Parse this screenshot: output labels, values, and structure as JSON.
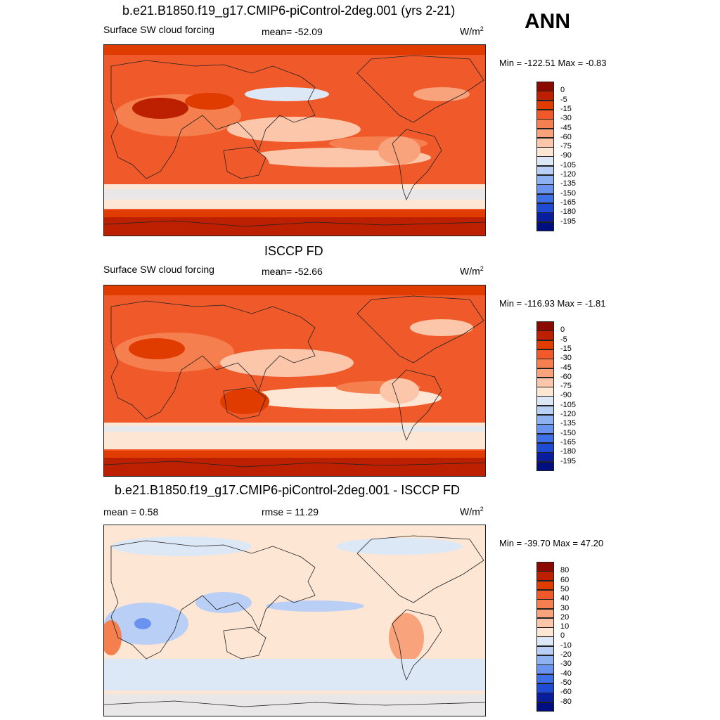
{
  "season": "ANN",
  "panels": [
    {
      "title": "b.e21.B1850.f19_g17.CMIP6-piControl-2deg.001 (yrs 2-21)",
      "left_label": "Surface SW cloud forcing",
      "center_label": "mean= -52.09",
      "units": "W/m",
      "units_exp": "2",
      "minmax": "Min = -122.51 Max =  -0.83",
      "colorbar_labels": [
        "0",
        "-5",
        "-15",
        "-30",
        "-45",
        "-60",
        "-75",
        "-90",
        "-105",
        "-120",
        "-135",
        "-150",
        "-165",
        "-180",
        "-195"
      ],
      "colorbar_colors": [
        "#8b0a00",
        "#bd2000",
        "#e03c00",
        "#f05a2a",
        "#f57f4f",
        "#f9a37c",
        "#fcc6aa",
        "#fde6d4",
        "#dde8f7",
        "#b9cff5",
        "#8eb1f2",
        "#6a93ef",
        "#3f6fe6",
        "#1f4ad4",
        "#0a1d9c",
        "#000f80"
      ]
    },
    {
      "title": "ISCCP FD",
      "left_label": "Surface SW cloud forcing",
      "center_label": "mean= -52.66",
      "units": "W/m",
      "units_exp": "2",
      "minmax": "Min = -116.93 Max =  -1.81",
      "colorbar_labels": [
        "0",
        "-5",
        "-15",
        "-30",
        "-45",
        "-60",
        "-75",
        "-90",
        "-105",
        "-120",
        "-135",
        "-150",
        "-165",
        "-180",
        "-195"
      ],
      "colorbar_colors": [
        "#8b0a00",
        "#bd2000",
        "#e03c00",
        "#f05a2a",
        "#f57f4f",
        "#f9a37c",
        "#fcc6aa",
        "#fde6d4",
        "#dde8f7",
        "#b9cff5",
        "#8eb1f2",
        "#6a93ef",
        "#3f6fe6",
        "#1f4ad4",
        "#0a1d9c",
        "#000f80"
      ]
    },
    {
      "title": "b.e21.B1850.f19_g17.CMIP6-piControl-2deg.001 - ISCCP FD",
      "left_label": "mean =   0.58",
      "center_label": "rmse =  11.29",
      "units": "W/m",
      "units_exp": "2",
      "minmax": "Min = -39.70 Max =  47.20",
      "colorbar_labels": [
        "80",
        "60",
        "50",
        "40",
        "30",
        "20",
        "10",
        "0",
        "-10",
        "-20",
        "-30",
        "-40",
        "-50",
        "-60",
        "-80"
      ],
      "colorbar_colors": [
        "#8b0a00",
        "#bd2000",
        "#e03c00",
        "#f05a2a",
        "#f57f4f",
        "#f9a37c",
        "#fcc6aa",
        "#fde6d4",
        "#dde8f7",
        "#b9cff5",
        "#8eb1f2",
        "#6a93ef",
        "#3f6fe6",
        "#1f4ad4",
        "#0a1d9c",
        "#000f80"
      ]
    }
  ],
  "chart_data": [
    {
      "type": "heatmap",
      "title": "b.e21.B1850.f19_g17.CMIP6-piControl-2deg.001 (yrs 2-21)",
      "variable": "Surface SW cloud forcing",
      "units": "W/m2",
      "mean": -52.09,
      "min": -122.51,
      "max": -0.83,
      "levels": [
        0,
        -5,
        -15,
        -30,
        -45,
        -60,
        -75,
        -90,
        -105,
        -120,
        -135,
        -150,
        -165,
        -180,
        -195
      ]
    },
    {
      "type": "heatmap",
      "title": "ISCCP FD",
      "variable": "Surface SW cloud forcing",
      "units": "W/m2",
      "mean": -52.66,
      "min": -116.93,
      "max": -1.81,
      "levels": [
        0,
        -5,
        -15,
        -30,
        -45,
        -60,
        -75,
        -90,
        -105,
        -120,
        -135,
        -150,
        -165,
        -180,
        -195
      ]
    },
    {
      "type": "heatmap",
      "title": "b.e21.B1850.f19_g17.CMIP6-piControl-2deg.001 - ISCCP FD",
      "units": "W/m2",
      "mean": 0.58,
      "rmse": 11.29,
      "min": -39.7,
      "max": 47.2,
      "levels": [
        80,
        60,
        50,
        40,
        30,
        20,
        10,
        0,
        -10,
        -20,
        -30,
        -40,
        -50,
        -60,
        -80
      ]
    }
  ]
}
